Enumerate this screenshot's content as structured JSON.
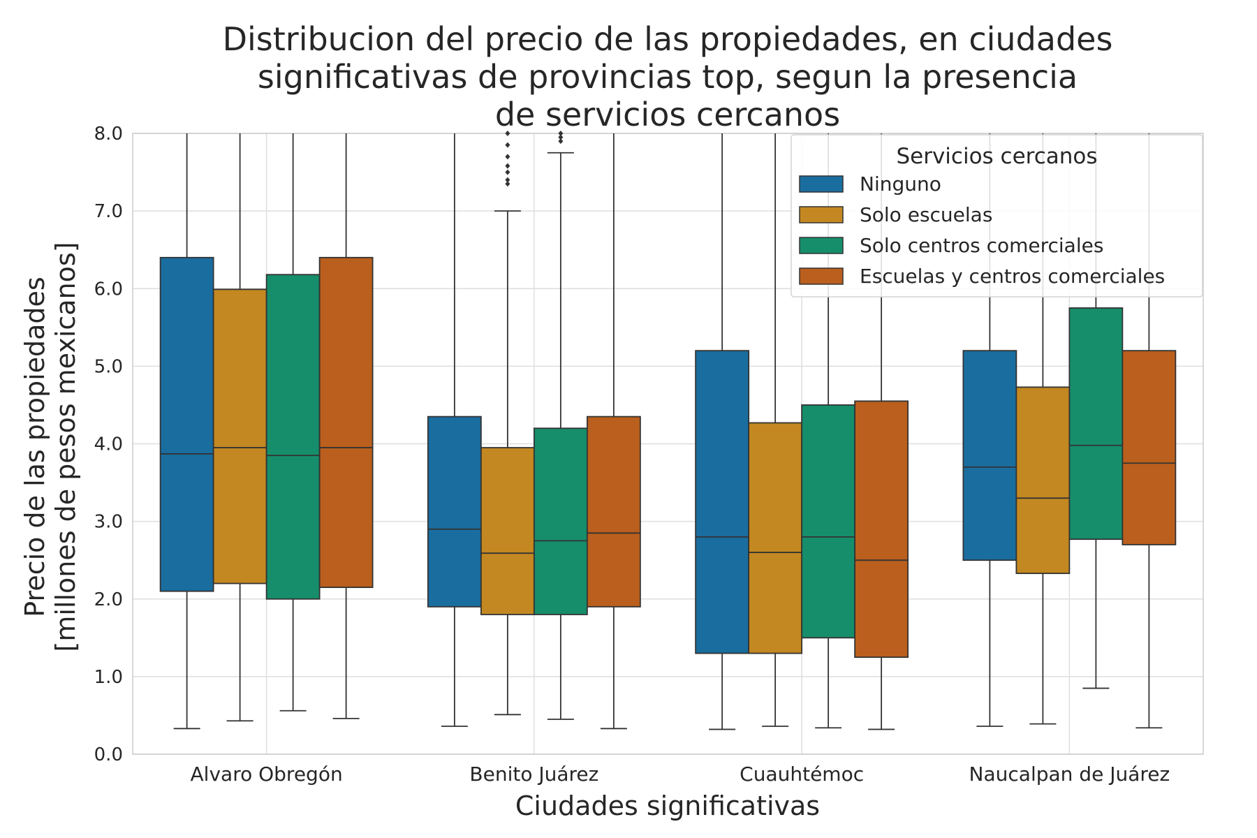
{
  "chart_data": {
    "type": "box",
    "title_lines": [
      "Distribucion del precio de las propiedades, en ciudades",
      "significativas de provincias top, segun la presencia",
      "de servicios cercanos"
    ],
    "xlabel": "Ciudades significativas",
    "ylabel_lines": [
      "Precio de las propiedades",
      "[millones de pesos mexicanos]"
    ],
    "ylim": [
      0,
      8
    ],
    "yticks": [
      "0.0",
      "1.0",
      "2.0",
      "3.0",
      "4.0",
      "5.0",
      "6.0",
      "7.0",
      "8.0"
    ],
    "grid": true,
    "legend": {
      "title": "Servicios cercanos",
      "placement": "top-right",
      "entries": [
        {
          "label": "Ninguno",
          "color": "#1a6d9f"
        },
        {
          "label": "Solo escuelas",
          "color": "#c38821"
        },
        {
          "label": "Solo centros comerciales",
          "color": "#168e6b"
        },
        {
          "label": "Escuelas y centros comerciales",
          "color": "#ba5f1d"
        }
      ]
    },
    "categories": [
      "Alvaro Obregón",
      "Benito Juárez",
      "Cuauhtémoc",
      "Naucalpan de Juárez"
    ],
    "series": [
      {
        "name": "Ninguno",
        "boxes": [
          {
            "whisker_low": 0.33,
            "q1": 2.1,
            "median": 3.87,
            "q3": 6.4,
            "whisker_high": 8.0,
            "outliers": []
          },
          {
            "whisker_low": 0.36,
            "q1": 1.9,
            "median": 2.9,
            "q3": 4.35,
            "whisker_high": 8.0,
            "outliers": []
          },
          {
            "whisker_low": 0.32,
            "q1": 1.3,
            "median": 2.8,
            "q3": 5.2,
            "whisker_high": 8.0,
            "outliers": []
          },
          {
            "whisker_low": 0.36,
            "q1": 2.5,
            "median": 3.7,
            "q3": 5.2,
            "whisker_high": 8.0,
            "outliers": []
          }
        ]
      },
      {
        "name": "Solo escuelas",
        "boxes": [
          {
            "whisker_low": 0.43,
            "q1": 2.2,
            "median": 3.95,
            "q3": 5.99,
            "whisker_high": 8.0,
            "outliers": []
          },
          {
            "whisker_low": 0.51,
            "q1": 1.8,
            "median": 2.59,
            "q3": 3.95,
            "whisker_high": 7.0,
            "outliers": [
              7.35,
              7.4,
              7.5,
              7.58,
              7.7,
              7.85,
              8.0
            ]
          },
          {
            "whisker_low": 0.36,
            "q1": 1.3,
            "median": 2.6,
            "q3": 4.27,
            "whisker_high": 8.0,
            "outliers": []
          },
          {
            "whisker_low": 0.39,
            "q1": 2.33,
            "median": 3.3,
            "q3": 4.73,
            "whisker_high": 8.0,
            "outliers": []
          }
        ]
      },
      {
        "name": "Solo centros comerciales",
        "boxes": [
          {
            "whisker_low": 0.56,
            "q1": 2.0,
            "median": 3.85,
            "q3": 6.18,
            "whisker_high": 8.0,
            "outliers": []
          },
          {
            "whisker_low": 0.45,
            "q1": 1.8,
            "median": 2.75,
            "q3": 4.2,
            "whisker_high": 7.75,
            "outliers": [
              7.9,
              7.95,
              8.0
            ]
          },
          {
            "whisker_low": 0.34,
            "q1": 1.5,
            "median": 2.8,
            "q3": 4.5,
            "whisker_high": 8.0,
            "outliers": []
          },
          {
            "whisker_low": 0.85,
            "q1": 2.77,
            "median": 3.98,
            "q3": 5.75,
            "whisker_high": 8.0,
            "outliers": []
          }
        ]
      },
      {
        "name": "Escuelas y centros comerciales",
        "boxes": [
          {
            "whisker_low": 0.46,
            "q1": 2.15,
            "median": 3.95,
            "q3": 6.4,
            "whisker_high": 8.0,
            "outliers": []
          },
          {
            "whisker_low": 0.33,
            "q1": 1.9,
            "median": 2.85,
            "q3": 4.35,
            "whisker_high": 8.0,
            "outliers": []
          },
          {
            "whisker_low": 0.32,
            "q1": 1.25,
            "median": 2.5,
            "q3": 4.55,
            "whisker_high": 8.0,
            "outliers": []
          },
          {
            "whisker_low": 0.34,
            "q1": 2.7,
            "median": 3.75,
            "q3": 5.2,
            "whisker_high": 8.0,
            "outliers": []
          }
        ]
      }
    ]
  }
}
